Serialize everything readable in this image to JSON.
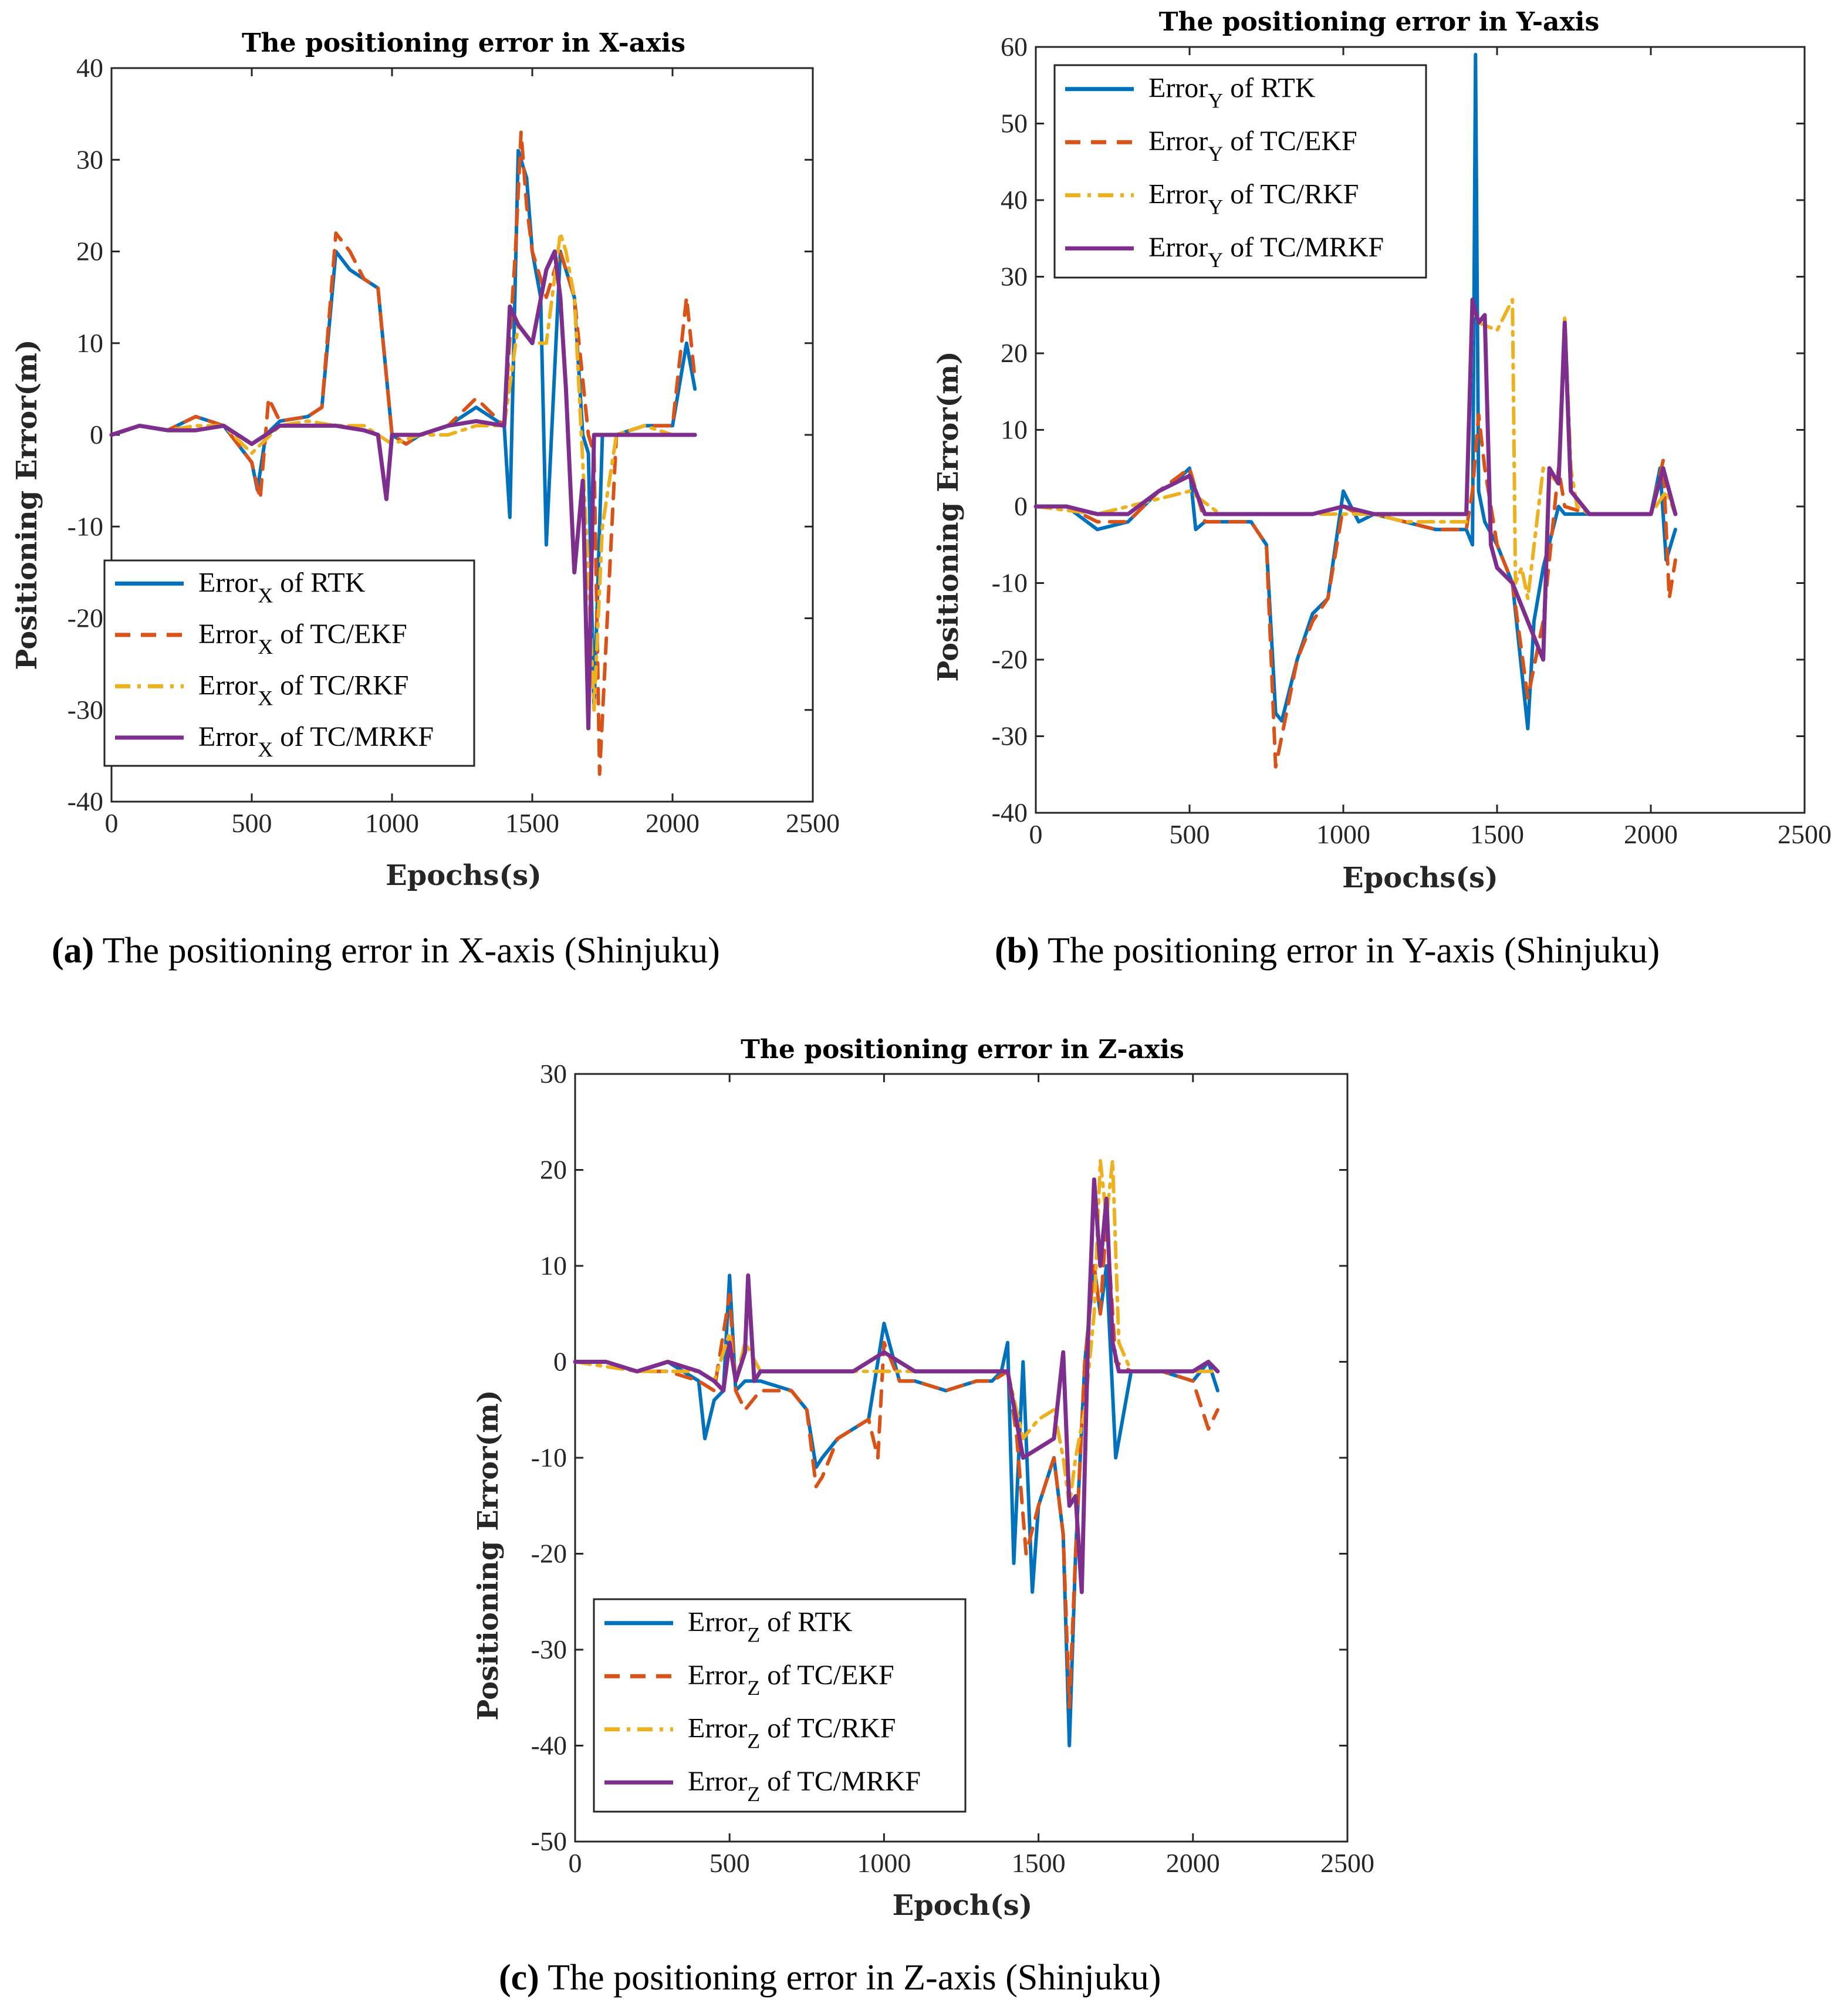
{
  "colors": {
    "rtk": "#0072BD",
    "ekf": "#D95319",
    "rkf": "#EDB120",
    "mrkf": "#7E2F8E"
  },
  "captions": [
    {
      "letter": "(a)",
      "text": " The positioning error in X-axis (Shinjuku)"
    },
    {
      "letter": "(b)",
      "text": " The positioning error in Y-axis (Shinjuku)"
    },
    {
      "letter": "(c)",
      "text": " The positioning error in Z-axis (Shinjuku)"
    }
  ],
  "chart_data": [
    {
      "type": "line",
      "title": "The positioning error in X-axis",
      "xlabel": "Epochs(s)",
      "ylabel": "Positioning Error(m)",
      "xlim": [
        0,
        2500
      ],
      "ylim": [
        -40,
        40
      ],
      "xticks": [
        0,
        500,
        1000,
        1500,
        2000,
        2500
      ],
      "yticks": [
        -40,
        -30,
        -20,
        -10,
        0,
        10,
        20,
        30,
        40
      ],
      "legend_location": "bottom-left",
      "legend": [
        {
          "base": "Error",
          "sub": "X",
          "rest": " of RTK"
        },
        {
          "base": "Error",
          "sub": "X",
          "rest": " of TC/EKF"
        },
        {
          "base": "Error",
          "sub": "X",
          "rest": " of TC/RKF"
        },
        {
          "base": "Error",
          "sub": "X",
          "rest": " of TC/MRKF"
        }
      ],
      "series": [
        {
          "name": "Error_X of RTK",
          "style": "solid",
          "color_key": "rtk",
          "x": [
            0,
            100,
            200,
            300,
            400,
            500,
            520,
            550,
            600,
            700,
            750,
            800,
            850,
            900,
            950,
            1000,
            1050,
            1100,
            1200,
            1300,
            1400,
            1420,
            1450,
            1480,
            1500,
            1530,
            1550,
            1600,
            1650,
            1680,
            1700,
            1720,
            1750,
            1800,
            1900,
            2000,
            2050,
            2080
          ],
          "y": [
            0,
            1,
            0.5,
            2,
            1,
            -3,
            -6,
            0,
            1.5,
            2,
            3,
            20,
            18,
            17,
            16,
            0,
            -1,
            0,
            1,
            3,
            1,
            -9,
            31,
            28,
            20,
            15,
            -12,
            20,
            15,
            0,
            -2,
            -30,
            0,
            0,
            1,
            1,
            10,
            5
          ]
        },
        {
          "name": "Error_X of TC/EKF",
          "style": "dash",
          "color_key": "ekf",
          "x": [
            0,
            100,
            200,
            300,
            400,
            500,
            530,
            560,
            600,
            700,
            750,
            800,
            850,
            900,
            950,
            1000,
            1050,
            1100,
            1200,
            1300,
            1400,
            1440,
            1460,
            1480,
            1500,
            1550,
            1600,
            1650,
            1700,
            1720,
            1740,
            1800,
            1900,
            2000,
            2050,
            2080
          ],
          "y": [
            0,
            1,
            0.5,
            2,
            1,
            -3,
            -7,
            4,
            1.5,
            2,
            3,
            22,
            20,
            17,
            16,
            0,
            -1,
            0,
            1,
            4,
            1,
            20,
            33,
            25,
            20,
            15,
            20,
            15,
            0,
            -2,
            -37,
            0,
            1,
            1,
            15,
            6
          ]
        },
        {
          "name": "Error_X of TC/RKF",
          "style": "dashdot",
          "color_key": "rkf",
          "x": [
            0,
            100,
            200,
            300,
            400,
            500,
            600,
            700,
            800,
            900,
            1000,
            1100,
            1200,
            1300,
            1400,
            1450,
            1500,
            1550,
            1600,
            1620,
            1650,
            1700,
            1720,
            1750,
            1800,
            1900,
            2000,
            2080
          ],
          "y": [
            0,
            1,
            0.5,
            1,
            1,
            -2,
            1,
            1.5,
            1,
            1,
            -1,
            0,
            0,
            1,
            1,
            12,
            10,
            10,
            22,
            20,
            15,
            -15,
            -30,
            -10,
            0,
            1,
            0,
            0
          ]
        },
        {
          "name": "Error_X of TC/MRKF",
          "style": "solid",
          "color_key": "mrkf",
          "x": [
            0,
            100,
            200,
            300,
            400,
            500,
            600,
            700,
            800,
            900,
            950,
            980,
            1000,
            1100,
            1200,
            1300,
            1400,
            1420,
            1450,
            1500,
            1550,
            1580,
            1600,
            1620,
            1650,
            1680,
            1700,
            1720,
            1740,
            1800,
            1900,
            2000,
            2080
          ],
          "y": [
            0,
            1,
            0.5,
            0.5,
            1,
            -1,
            1,
            1,
            1,
            0.5,
            0,
            -7,
            0,
            0,
            1,
            1.5,
            1,
            14,
            12,
            10,
            18,
            20,
            15,
            5,
            -15,
            -5,
            -32,
            0,
            0,
            0,
            0,
            0,
            0
          ]
        }
      ]
    },
    {
      "type": "line",
      "title": "The positioning error in Y-axis",
      "xlabel": "Epochs(s)",
      "ylabel": "Positioning Error(m)",
      "xlim": [
        0,
        2500
      ],
      "ylim": [
        -40,
        60
      ],
      "xticks": [
        0,
        500,
        1000,
        1500,
        2000,
        2500
      ],
      "yticks": [
        -40,
        -30,
        -20,
        -10,
        0,
        10,
        20,
        30,
        40,
        50,
        60
      ],
      "legend_location": "top-left",
      "legend": [
        {
          "base": "Error",
          "sub": "Y",
          "rest": " of RTK"
        },
        {
          "base": "Error",
          "sub": "Y",
          "rest": " of TC/EKF"
        },
        {
          "base": "Error",
          "sub": "Y",
          "rest": " of TC/RKF"
        },
        {
          "base": "Error",
          "sub": "Y",
          "rest": " of TC/MRKF"
        }
      ],
      "series": [
        {
          "name": "Error_Y of RTK",
          "style": "solid",
          "color_key": "rtk",
          "x": [
            0,
            100,
            200,
            300,
            400,
            450,
            500,
            520,
            550,
            600,
            700,
            750,
            780,
            800,
            850,
            900,
            950,
            1000,
            1050,
            1100,
            1200,
            1300,
            1400,
            1420,
            1430,
            1440,
            1460,
            1500,
            1550,
            1600,
            1620,
            1650,
            1700,
            1720,
            1800,
            1900,
            2000,
            2030,
            2050,
            2080
          ],
          "y": [
            0,
            0,
            -3,
            -2,
            2,
            3,
            5,
            -3,
            -2,
            -2,
            -2,
            -5,
            -27,
            -28,
            -20,
            -14,
            -12,
            2,
            -2,
            -1,
            -2,
            -3,
            -3,
            -5,
            59,
            2,
            -2,
            -5,
            -10,
            -29,
            -15,
            -8,
            0,
            -1,
            -1,
            -1,
            -1,
            5,
            -7,
            -3
          ]
        },
        {
          "name": "Error_Y of TC/EKF",
          "style": "dash",
          "color_key": "ekf",
          "x": [
            0,
            100,
            200,
            300,
            400,
            500,
            550,
            600,
            700,
            750,
            780,
            800,
            850,
            900,
            950,
            1000,
            1050,
            1100,
            1200,
            1300,
            1400,
            1420,
            1440,
            1460,
            1500,
            1550,
            1600,
            1650,
            1700,
            1720,
            1800,
            1900,
            2000,
            2040,
            2060,
            2080
          ],
          "y": [
            0,
            0,
            -2,
            -2,
            2,
            5,
            -2,
            -2,
            -2,
            -5,
            -34,
            -30,
            -20,
            -15,
            -12,
            0,
            -1,
            -1,
            -2,
            -3,
            -3,
            2,
            12,
            5,
            -5,
            -10,
            -25,
            -15,
            5,
            0,
            -1,
            -1,
            -1,
            6,
            -12,
            -7
          ]
        },
        {
          "name": "Error_Y of TC/RKF",
          "style": "dashdot",
          "color_key": "rkf",
          "x": [
            0,
            200,
            400,
            500,
            600,
            700,
            800,
            900,
            1000,
            1100,
            1200,
            1300,
            1400,
            1420,
            1440,
            1500,
            1550,
            1560,
            1580,
            1600,
            1650,
            1700,
            1720,
            1740,
            1760,
            1800,
            1900,
            2000,
            2050,
            2080
          ],
          "y": [
            0,
            -1,
            1,
            2,
            -1,
            -1,
            -1,
            -1,
            -1,
            -1,
            -2,
            -2,
            -2,
            25,
            24,
            23,
            27,
            -10,
            -8,
            -12,
            5,
            3,
            25,
            5,
            0,
            -1,
            -1,
            -1,
            2,
            -1
          ]
        },
        {
          "name": "Error_Y of TC/MRKF",
          "style": "solid",
          "color_key": "mrkf",
          "x": [
            0,
            100,
            200,
            300,
            400,
            500,
            550,
            600,
            700,
            800,
            900,
            1000,
            1100,
            1200,
            1300,
            1400,
            1420,
            1440,
            1460,
            1480,
            1500,
            1550,
            1600,
            1650,
            1670,
            1700,
            1720,
            1740,
            1800,
            1900,
            2000,
            2040,
            2080
          ],
          "y": [
            0,
            0,
            -1,
            -1,
            2,
            4,
            -1,
            -1,
            -1,
            -1,
            -1,
            0,
            -1,
            -1,
            -1,
            -1,
            27,
            24,
            25,
            -5,
            -8,
            -10,
            -15,
            -20,
            5,
            3,
            24,
            2,
            -1,
            -1,
            -1,
            5,
            -1
          ]
        }
      ]
    },
    {
      "type": "line",
      "title": "The positioning error in Z-axis",
      "xlabel": "Epoch(s)",
      "ylabel": "Positioning Error(m)",
      "xlim": [
        0,
        2500
      ],
      "ylim": [
        -50,
        30
      ],
      "xticks": [
        0,
        500,
        1000,
        1500,
        2000,
        2500
      ],
      "yticks": [
        -50,
        -40,
        -30,
        -20,
        -10,
        0,
        10,
        20,
        30
      ],
      "legend_location": "bottom-left",
      "legend": [
        {
          "base": "Error",
          "sub": "Z",
          "rest": " of RTK"
        },
        {
          "base": "Error",
          "sub": "Z",
          "rest": " of TC/EKF"
        },
        {
          "base": "Error",
          "sub": "Z",
          "rest": " of TC/RKF"
        },
        {
          "base": "Error",
          "sub": "Z",
          "rest": " of TC/MRKF"
        }
      ],
      "series": [
        {
          "name": "Error_Z of RTK",
          "style": "solid",
          "color_key": "rtk",
          "x": [
            0,
            100,
            200,
            300,
            400,
            420,
            450,
            480,
            500,
            520,
            550,
            600,
            700,
            750,
            780,
            800,
            850,
            900,
            950,
            1000,
            1050,
            1100,
            1200,
            1300,
            1350,
            1380,
            1400,
            1420,
            1450,
            1480,
            1500,
            1550,
            1580,
            1600,
            1620,
            1650,
            1680,
            1700,
            1720,
            1750,
            1800,
            1900,
            2000,
            2050,
            2080
          ],
          "y": [
            0,
            0,
            -1,
            0,
            -2,
            -8,
            -4,
            -3,
            9,
            -3,
            -2,
            -2,
            -3,
            -5,
            -11,
            -10,
            -8,
            -7,
            -6,
            4,
            -2,
            -2,
            -3,
            -2,
            -2,
            -1,
            2,
            -21,
            0,
            -24,
            -15,
            -10,
            -18,
            -40,
            -20,
            0,
            10,
            5,
            10,
            -10,
            -1,
            -1,
            -2,
            0,
            -3
          ]
        },
        {
          "name": "Error_Z of TC/EKF",
          "style": "dash",
          "color_key": "ekf",
          "x": [
            0,
            100,
            200,
            300,
            400,
            450,
            500,
            520,
            550,
            600,
            700,
            750,
            780,
            800,
            850,
            900,
            950,
            980,
            1000,
            1050,
            1100,
            1200,
            1300,
            1350,
            1400,
            1430,
            1460,
            1500,
            1550,
            1580,
            1600,
            1620,
            1650,
            1680,
            1700,
            1720,
            1750,
            1800,
            1900,
            2000,
            2050,
            2080
          ],
          "y": [
            0,
            0,
            -1,
            -1,
            -2,
            -3,
            7,
            -3,
            -5,
            -3,
            -3,
            -5,
            -13,
            -12,
            -8,
            -7,
            -6,
            -10,
            2,
            -2,
            -2,
            -3,
            -2,
            -2,
            -1,
            -8,
            -20,
            -15,
            -10,
            -18,
            -36,
            -20,
            0,
            10,
            5,
            15,
            0,
            -1,
            -1,
            -2,
            -7,
            -5
          ]
        },
        {
          "name": "Error_Z of TC/RKF",
          "style": "dashdot",
          "color_key": "rkf",
          "x": [
            0,
            200,
            400,
            450,
            500,
            520,
            550,
            600,
            700,
            800,
            900,
            1000,
            1100,
            1200,
            1300,
            1400,
            1450,
            1500,
            1550,
            1580,
            1600,
            1620,
            1650,
            1680,
            1700,
            1720,
            1740,
            1760,
            1800,
            1900,
            2000,
            2080
          ],
          "y": [
            0,
            -1,
            -1,
            -2,
            3,
            -2,
            2,
            -1,
            -1,
            -1,
            -1,
            -1,
            -1,
            -1,
            -1,
            -1,
            -8,
            -6,
            -5,
            -10,
            -15,
            -10,
            -5,
            5,
            21,
            15,
            21,
            2,
            -1,
            -1,
            -1,
            -1
          ]
        },
        {
          "name": "Error_Z of TC/MRKF",
          "style": "solid",
          "color_key": "mrkf",
          "x": [
            0,
            100,
            200,
            300,
            400,
            450,
            480,
            500,
            520,
            550,
            560,
            580,
            600,
            700,
            800,
            900,
            1000,
            1100,
            1200,
            1300,
            1350,
            1400,
            1450,
            1500,
            1550,
            1580,
            1600,
            1620,
            1640,
            1660,
            1680,
            1700,
            1720,
            1740,
            1760,
            1800,
            1900,
            2000,
            2050,
            2080
          ],
          "y": [
            0,
            0,
            -1,
            0,
            -1,
            -2,
            -3,
            2,
            -2,
            1,
            9,
            -2,
            -1,
            -1,
            -1,
            -1,
            1,
            -1,
            -1,
            -1,
            -1,
            -1,
            -10,
            -9,
            -8,
            1,
            -15,
            -14,
            -24,
            2,
            19,
            10,
            17,
            2,
            -1,
            -1,
            -1,
            -1,
            0,
            -1
          ]
        }
      ]
    }
  ]
}
